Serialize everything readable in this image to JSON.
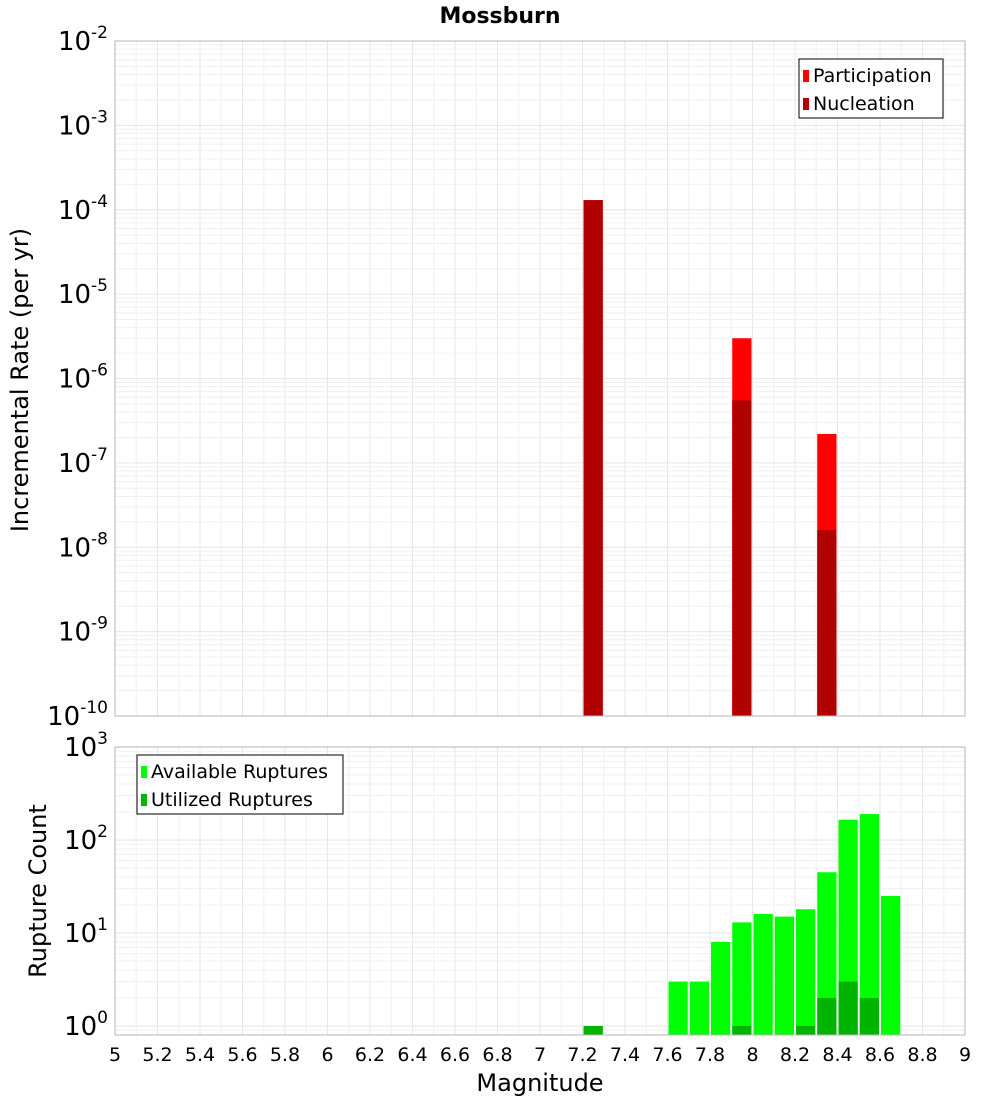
{
  "chart_data": [
    {
      "type": "bar",
      "title": "Mossburn",
      "ylabel": "Incremental Rate (per yr)",
      "y_scale": "log",
      "ylim": [
        1e-10,
        0.01
      ],
      "xlim": [
        5,
        9
      ],
      "bin_width": 0.1,
      "y_tick_exponents": [
        -10,
        -9,
        -8,
        -7,
        -6,
        -5,
        -4,
        -3,
        -2
      ],
      "y_tick_base": "10",
      "legend": {
        "position": "top-right",
        "entries": [
          "Participation",
          "Nucleation"
        ]
      },
      "colors": {
        "Participation": "#ff0000",
        "Nucleation": "#b00000"
      },
      "series": [
        {
          "name": "Participation",
          "x": [
            7.25,
            7.95,
            8.35
          ],
          "values": [
            0.00013,
            3e-06,
            2.2e-07
          ]
        },
        {
          "name": "Nucleation",
          "x": [
            7.25,
            7.95,
            8.35
          ],
          "values": [
            0.00013,
            5.5e-07,
            1.6e-08
          ]
        }
      ]
    },
    {
      "type": "bar",
      "xlabel": "Magnitude",
      "ylabel": "Rupture Count",
      "y_scale": "log",
      "ylim": [
        0.8,
        1000
      ],
      "xlim": [
        5,
        9
      ],
      "bin_width": 0.1,
      "y_tick_exponents": [
        0,
        1,
        2,
        3
      ],
      "y_tick_base": "10",
      "x_ticks": [
        "5",
        "5.2",
        "5.4",
        "5.6",
        "5.8",
        "6",
        "6.2",
        "6.4",
        "6.6",
        "6.8",
        "7",
        "7.2",
        "7.4",
        "7.6",
        "7.8",
        "8",
        "8.2",
        "8.4",
        "8.6",
        "8.8",
        "9"
      ],
      "legend": {
        "position": "top-left",
        "entries": [
          "Available Ruptures",
          "Utilized Ruptures"
        ]
      },
      "colors": {
        "Available Ruptures": "#00ff00",
        "Utilized Ruptures": "#00b400"
      },
      "series": [
        {
          "name": "Available Ruptures",
          "x": [
            7.25,
            7.65,
            7.75,
            7.85,
            7.95,
            8.05,
            8.15,
            8.25,
            8.35,
            8.45,
            8.55,
            8.65
          ],
          "values": [
            1,
            3,
            3,
            8,
            13,
            16,
            15,
            18,
            45,
            165,
            190,
            25
          ]
        },
        {
          "name": "Utilized Ruptures",
          "x": [
            7.25,
            7.95,
            8.25,
            8.35,
            8.45,
            8.55
          ],
          "values": [
            1,
            1,
            1,
            2,
            3,
            2
          ]
        }
      ]
    }
  ]
}
